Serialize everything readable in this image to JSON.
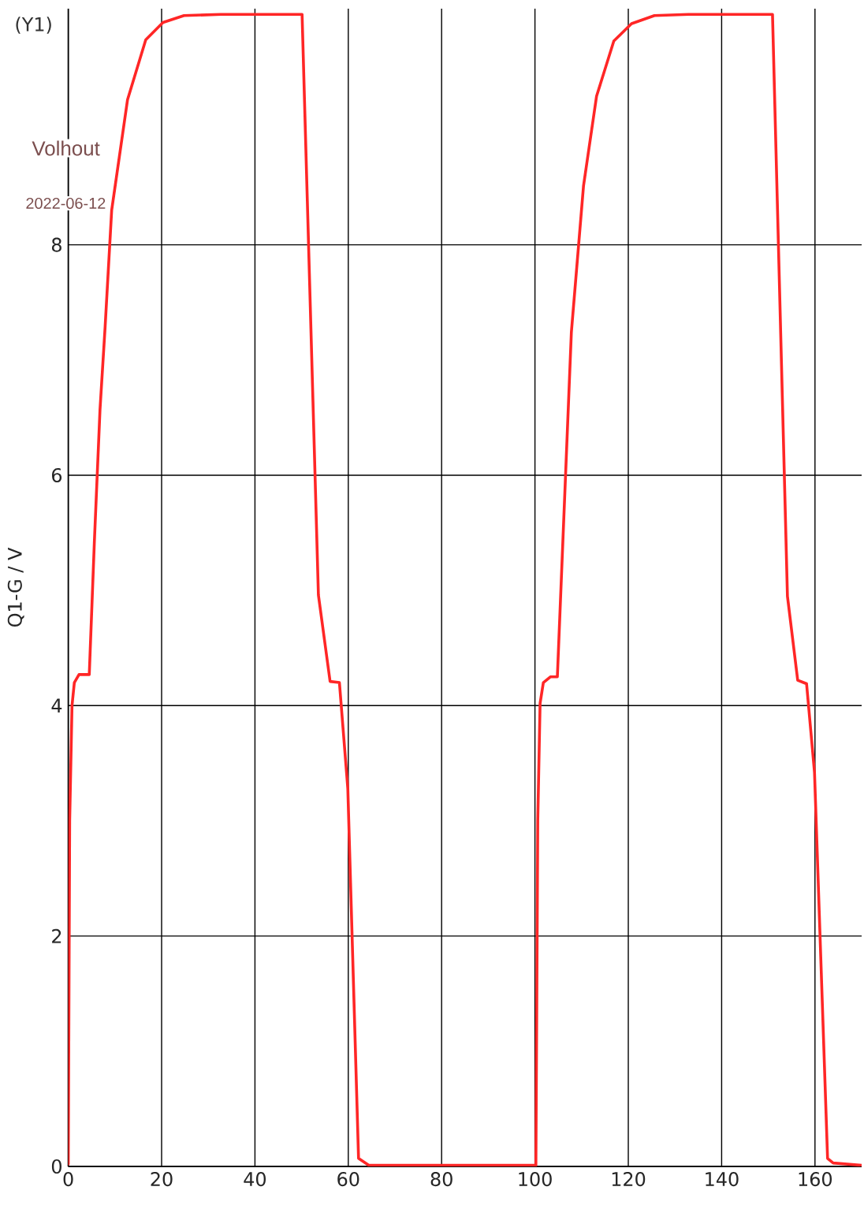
{
  "chart_data": {
    "type": "line",
    "ylabel": "Q1-G / V",
    "annotations": [
      "(Y1)",
      "Volhout",
      "2022-06-12"
    ],
    "x": [
      0,
      0.3,
      0.8,
      1.3,
      2.3,
      4.5,
      5.6,
      6.8,
      7.9,
      9.3,
      12.7,
      16.6,
      20.3,
      24.8,
      32.7,
      50.1,
      53.6,
      56.1,
      58.1,
      59.9,
      62.2,
      64.4,
      100.2,
      100.6,
      101.1,
      101.8,
      103.3,
      104.8,
      107.8,
      110.4,
      113.2,
      116.9,
      120.7,
      125.6,
      132.9,
      150.9,
      154.1,
      156.3,
      158.2,
      159.9,
      162.7,
      163.9,
      170
    ],
    "series": [
      {
        "color": "#ff2626",
        "values": [
          0.02,
          3.0,
          4.0,
          4.2,
          4.27,
          4.27,
          5.43,
          6.57,
          7.29,
          8.3,
          9.26,
          9.78,
          9.93,
          9.99,
          10.0,
          10.0,
          4.96,
          4.21,
          4.2,
          3.28,
          0.07,
          0.01,
          0.01,
          3.0,
          4.02,
          4.2,
          4.25,
          4.25,
          7.24,
          8.51,
          9.29,
          9.77,
          9.92,
          9.99,
          10.0,
          10.0,
          4.95,
          4.22,
          4.19,
          3.42,
          0.07,
          0.03,
          0.01
        ]
      }
    ],
    "xlim": [
      0,
      170
    ],
    "ylim": [
      0,
      10.05
    ],
    "xticks": [
      0,
      20,
      40,
      60,
      80,
      100,
      120,
      140,
      160
    ],
    "yticks": [
      0,
      2,
      4,
      6,
      8
    ],
    "grid": true,
    "marker": "none",
    "line_style": "solid"
  }
}
